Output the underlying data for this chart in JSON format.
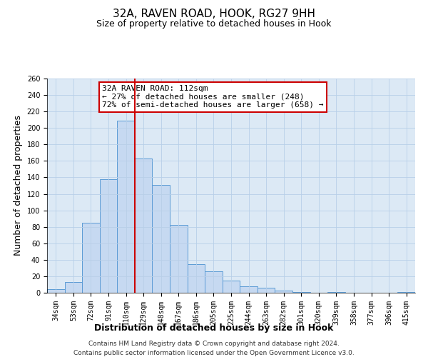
{
  "title": "32A, RAVEN ROAD, HOOK, RG27 9HH",
  "subtitle": "Size of property relative to detached houses in Hook",
  "xlabel": "Distribution of detached houses by size in Hook",
  "ylabel": "Number of detached properties",
  "bar_labels": [
    "34sqm",
    "53sqm",
    "72sqm",
    "91sqm",
    "110sqm",
    "129sqm",
    "148sqm",
    "167sqm",
    "186sqm",
    "205sqm",
    "225sqm",
    "244sqm",
    "263sqm",
    "282sqm",
    "301sqm",
    "320sqm",
    "339sqm",
    "358sqm",
    "377sqm",
    "396sqm",
    "415sqm"
  ],
  "bar_values": [
    4,
    13,
    85,
    138,
    209,
    163,
    131,
    82,
    35,
    26,
    15,
    8,
    6,
    3,
    1,
    0,
    1,
    0,
    0,
    0,
    1
  ],
  "bar_color": "#c6d9f1",
  "bar_edge_color": "#5b9bd5",
  "vline_x_index": 4,
  "vline_color": "#cc0000",
  "ylim": [
    0,
    260
  ],
  "yticks": [
    0,
    20,
    40,
    60,
    80,
    100,
    120,
    140,
    160,
    180,
    200,
    220,
    240,
    260
  ],
  "annotation_title": "32A RAVEN ROAD: 112sqm",
  "annotation_line1": "← 27% of detached houses are smaller (248)",
  "annotation_line2": "72% of semi-detached houses are larger (658) →",
  "footer1": "Contains HM Land Registry data © Crown copyright and database right 2024.",
  "footer2": "Contains public sector information licensed under the Open Government Licence v3.0.",
  "bg_color": "#ffffff",
  "plot_bg_color": "#dce9f5",
  "grid_color": "#b8cfe8",
  "title_fontsize": 11,
  "subtitle_fontsize": 9,
  "axis_label_fontsize": 9,
  "tick_fontsize": 7,
  "annotation_fontsize": 8,
  "footer_fontsize": 6.5
}
